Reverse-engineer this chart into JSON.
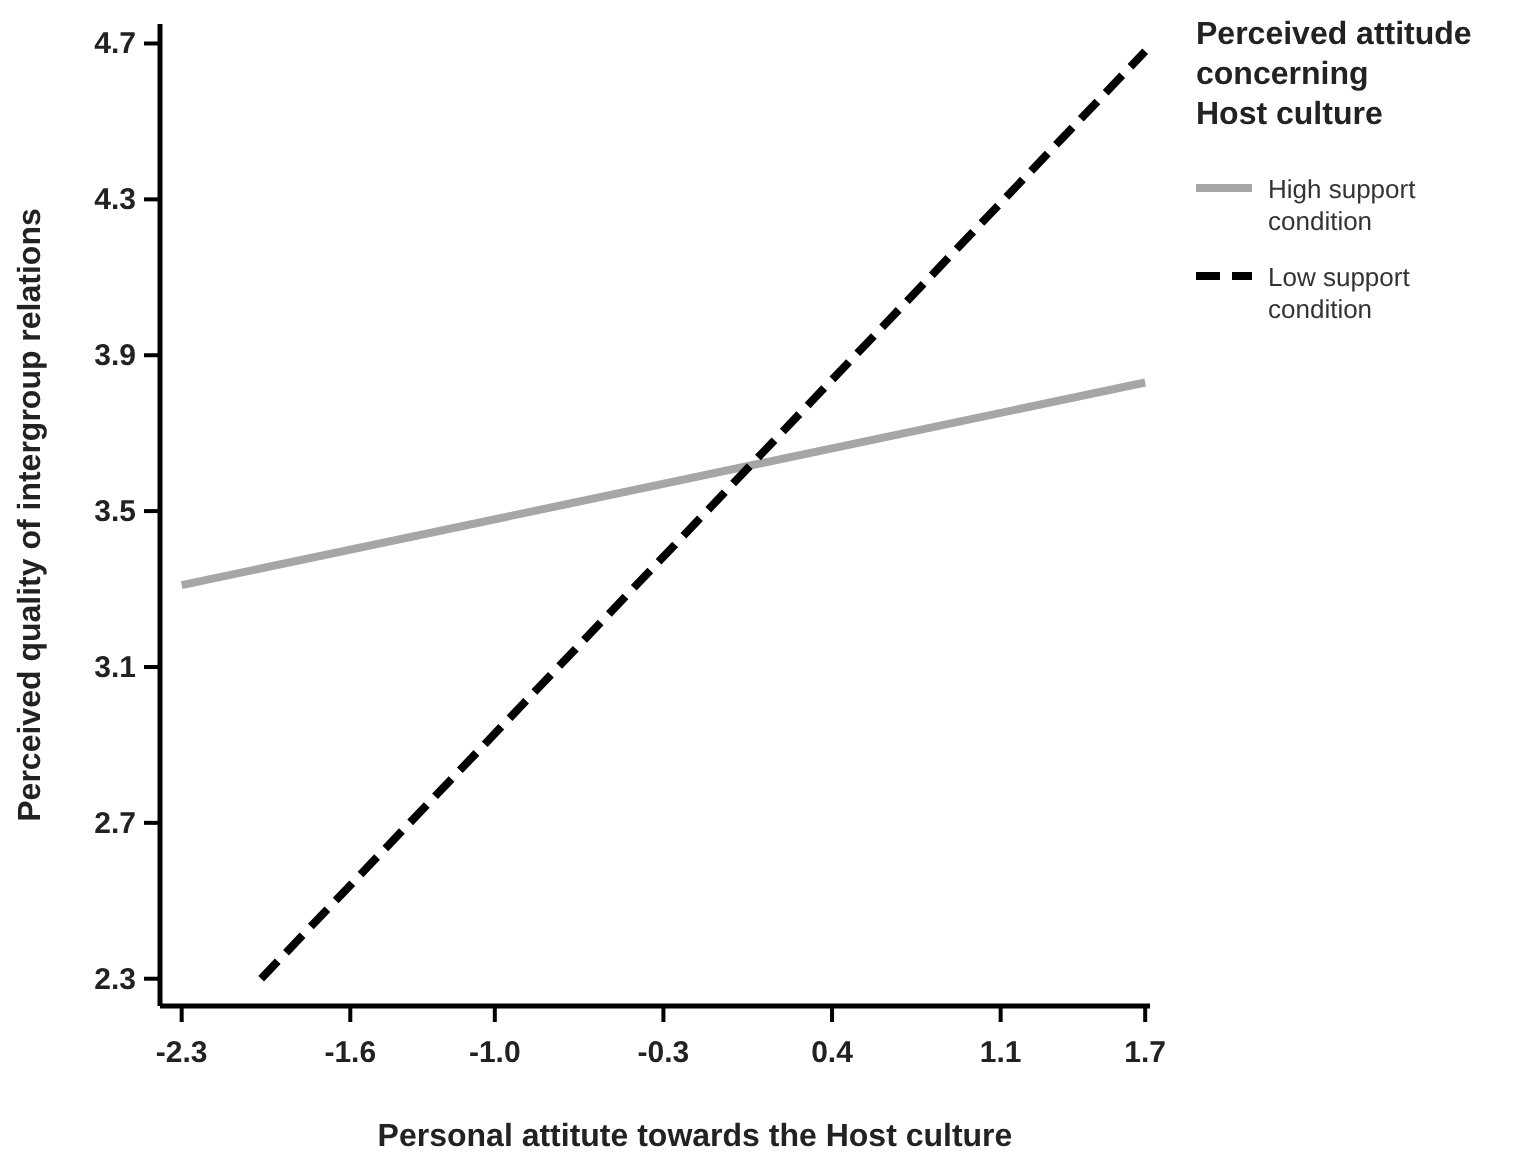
{
  "chart_data": {
    "type": "line",
    "xlabel": "Personal attitute towards the Host culture",
    "ylabel": "Perceived quality of intergroup relations",
    "legend_title": "Perceived attitude concerning Host culture",
    "legend": "right",
    "series": [
      {
        "name": "High support condition",
        "color": "#a6a6a6",
        "line_style": "solid",
        "x": [
          -2.3,
          1.7
        ],
        "values": [
          3.31,
          3.83
        ]
      },
      {
        "name": "Low support condition",
        "color": "#000000",
        "line_style": "dashed",
        "x": [
          -1.97,
          1.7
        ],
        "values": [
          2.3,
          4.68
        ]
      }
    ],
    "xlim": [
      -2.39,
      1.72
    ],
    "ylim": [
      2.23,
      4.75
    ],
    "xticks": [
      -2.3,
      -1.6,
      {
        "value": -1.0,
        "label": "-1.0"
      },
      -0.3,
      0.4,
      1.1,
      1.7
    ],
    "yticks": [
      2.3,
      2.7,
      3.1,
      3.5,
      3.9,
      4.3,
      4.7
    ],
    "grid": false
  }
}
